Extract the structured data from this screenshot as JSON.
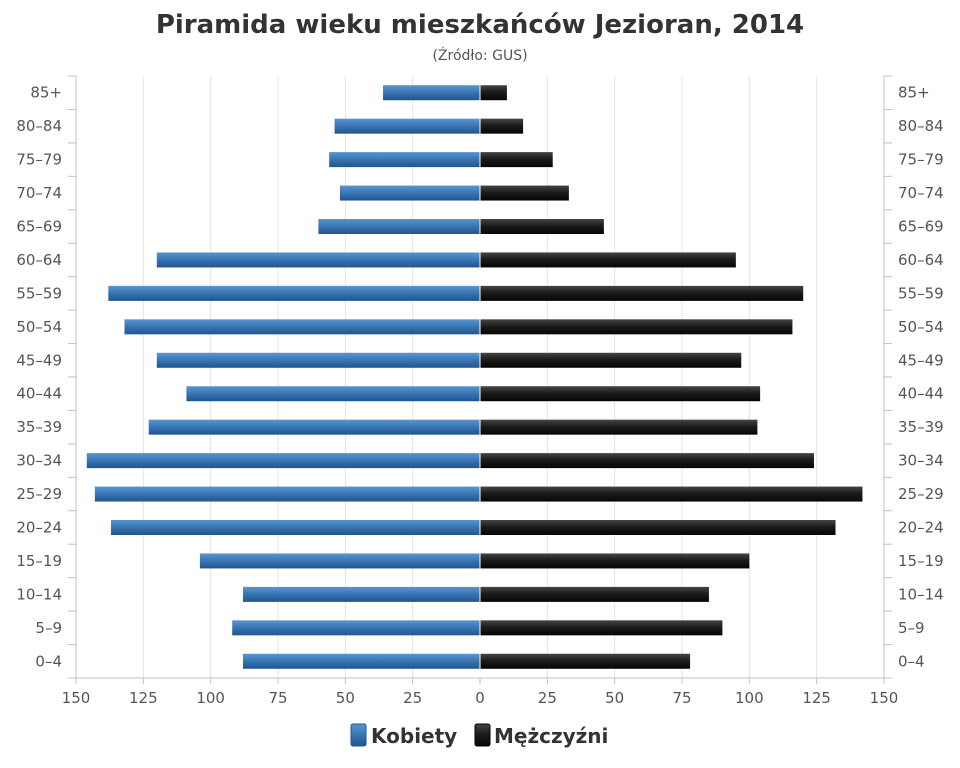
{
  "chart_data": {
    "type": "bar",
    "orientation": "horizontal",
    "layout": "population-pyramid",
    "title": "Piramida wieku mieszkańców Jezioran, 2014",
    "subtitle": "(Źródło: GUS)",
    "categories": [
      "0–4",
      "5–9",
      "10–14",
      "15–19",
      "20–24",
      "25–29",
      "30–34",
      "35–39",
      "40–44",
      "45–49",
      "50–54",
      "55–59",
      "60–64",
      "65–69",
      "70–74",
      "75–79",
      "80–84",
      "85+"
    ],
    "series": [
      {
        "name": "Kobiety",
        "color": "#3d7ab8",
        "side": "left",
        "values": [
          88,
          92,
          88,
          104,
          137,
          143,
          146,
          123,
          109,
          120,
          132,
          138,
          120,
          60,
          52,
          56,
          54,
          36
        ]
      },
      {
        "name": "Mężczyźni",
        "color": "#1a1a1a",
        "side": "right",
        "values": [
          78,
          90,
          85,
          100,
          132,
          142,
          124,
          103,
          104,
          97,
          116,
          120,
          95,
          46,
          33,
          27,
          16,
          10
        ]
      }
    ],
    "xlim": [
      -150,
      150
    ],
    "xticks": [
      -150,
      -125,
      -100,
      -75,
      -50,
      -25,
      0,
      25,
      50,
      75,
      100,
      125,
      150
    ],
    "xtick_labels": [
      "150",
      "125",
      "100",
      "75",
      "50",
      "25",
      "0",
      "25",
      "50",
      "75",
      "100",
      "125",
      "150"
    ],
    "grid": true,
    "legend_position": "bottom"
  }
}
